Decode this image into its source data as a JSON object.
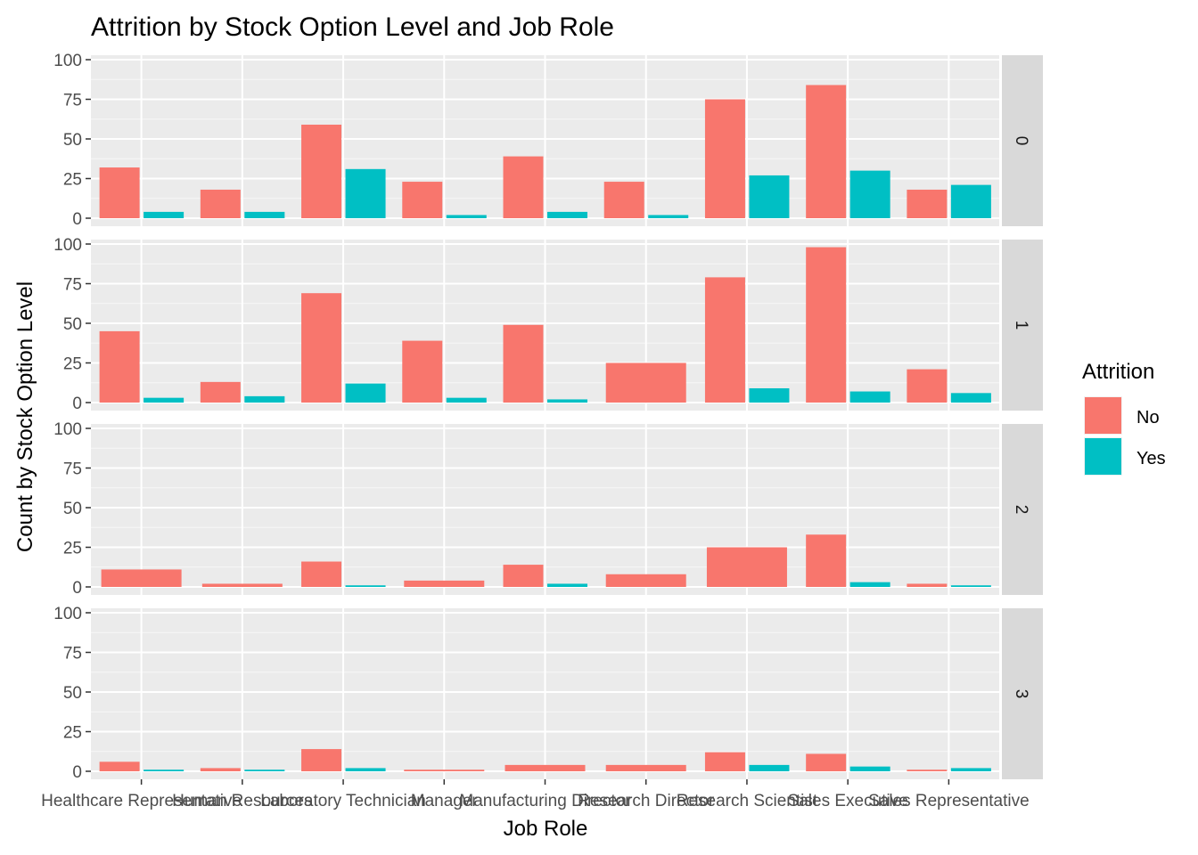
{
  "chart_data": {
    "type": "bar",
    "title": "Attrition by Stock Option Level and Job Role",
    "xlabel": "Job Role",
    "ylabel": "Count by Stock Option Level",
    "ylim": [
      0,
      100
    ],
    "yticks": [
      0,
      25,
      50,
      75,
      100
    ],
    "grid": true,
    "legend": {
      "title": "Attrition",
      "position": "right"
    },
    "categories": [
      "Healthcare Representative",
      "Human Resources",
      "Laboratory Technician",
      "Manager",
      "Manufacturing Director",
      "Research Director",
      "Research Scientist",
      "Sales Executive",
      "Sales Representative"
    ],
    "series": [
      {
        "name": "No",
        "color": "#F8766D"
      },
      {
        "name": "Yes",
        "color": "#00BFC4"
      }
    ],
    "panels": [
      {
        "label": "0",
        "values": {
          "No": [
            32,
            18,
            59,
            23,
            39,
            23,
            75,
            84,
            18
          ],
          "Yes": [
            4,
            4,
            31,
            2,
            4,
            2,
            27,
            30,
            21
          ]
        }
      },
      {
        "label": "1",
        "values": {
          "No": [
            45,
            13,
            69,
            39,
            49,
            25,
            79,
            98,
            21
          ],
          "Yes": [
            3,
            4,
            12,
            3,
            2,
            null,
            9,
            7,
            6
          ]
        }
      },
      {
        "label": "2",
        "values": {
          "No": [
            11,
            2,
            16,
            4,
            14,
            8,
            25,
            33,
            2
          ],
          "Yes": [
            null,
            null,
            1,
            null,
            2,
            null,
            null,
            3,
            1
          ]
        }
      },
      {
        "label": "3",
        "values": {
          "No": [
            6,
            2,
            14,
            1,
            4,
            4,
            12,
            11,
            1
          ],
          "Yes": [
            1,
            1,
            2,
            null,
            null,
            null,
            4,
            3,
            2
          ]
        }
      }
    ]
  }
}
